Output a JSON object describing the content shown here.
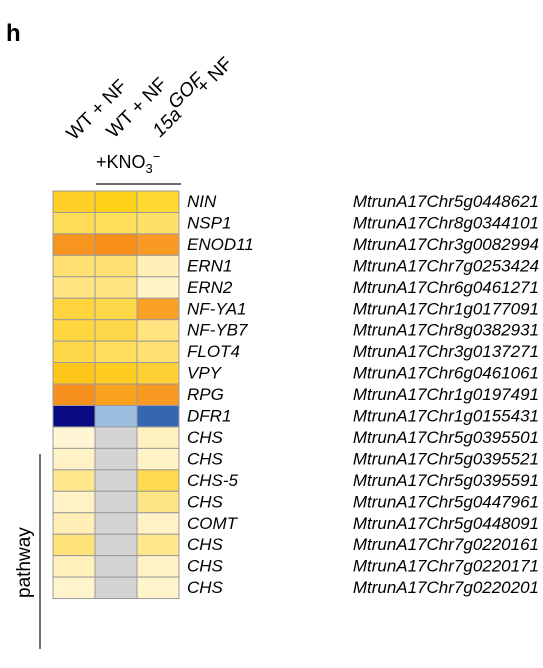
{
  "panel_letter": "h",
  "columns": [
    "WT + NF",
    "WT + NF",
    "15a",
    "GOF",
    "+ NF"
  ],
  "condition": {
    "prefix": "+KNO",
    "subscript": "3",
    "superscript": "−"
  },
  "group_label": "pathway",
  "colors": {
    "light_yellow": "#fff6d6",
    "yellow": "#ffd84a",
    "gold": "#ffc61a",
    "orange": "#f79a1e",
    "grey_na": "#d4d4d4",
    "navy": "#0a0a82",
    "light_blue": "#9bbde0",
    "mid_blue": "#3566b2"
  },
  "chart_data": {
    "type": "heatmap",
    "columns": [
      "WT + NF",
      "WT + NF",
      "15a GOF + NF"
    ],
    "rows": [
      {
        "gene": "NIN",
        "id": "MtrunA17Chr5g0448621",
        "colors": [
          "#ffcf26",
          "#ffd21a",
          "#ffd830"
        ]
      },
      {
        "gene": "NSP1",
        "id": "MtrunA17Chr8g0344101",
        "colors": [
          "#ffdc55",
          "#ffde5a",
          "#ffe066"
        ]
      },
      {
        "gene": "ENOD11",
        "id": "MtrunA17Chr3g0082994",
        "colors": [
          "#f8951e",
          "#f98e18",
          "#f89a24"
        ]
      },
      {
        "gene": "ERN1",
        "id": "MtrunA17Chr7g0253424",
        "colors": [
          "#ffe070",
          "#ffe070",
          "#fff0b8"
        ]
      },
      {
        "gene": "ERN2",
        "id": "MtrunA17Chr6g0461271",
        "colors": [
          "#ffe481",
          "#ffe481",
          "#fff4c8"
        ]
      },
      {
        "gene": "NF-YA1",
        "id": "MtrunA17Chr1g0177091",
        "colors": [
          "#ffd43c",
          "#ffd84a",
          "#f9a125"
        ]
      },
      {
        "gene": "NF-YB7",
        "id": "MtrunA17Chr8g0382931",
        "colors": [
          "#ffd640",
          "#ffd84a",
          "#ffe480"
        ]
      },
      {
        "gene": "FLOT4",
        "id": "MtrunA17Chr3g0137271",
        "colors": [
          "#ffd84a",
          "#ffde5e",
          "#ffe070"
        ]
      },
      {
        "gene": "VPY",
        "id": "MtrunA17Chr6g0461061",
        "colors": [
          "#ffc61a",
          "#ffcc22",
          "#ffd034"
        ]
      },
      {
        "gene": "RPG",
        "id": "MtrunA17Chr1g0197491",
        "colors": [
          "#f7901f",
          "#faa31e",
          "#f89a22"
        ]
      },
      {
        "gene": "DFR1",
        "id": "MtrunA17Chr1g0155431",
        "colors": [
          "#0a0a82",
          "#9bbde0",
          "#3566b2"
        ]
      },
      {
        "gene": "CHS",
        "id": "MtrunA17Chr5g0395501",
        "colors": [
          "#fff6d6",
          "#d4d4d4",
          "#fff0c0"
        ]
      },
      {
        "gene": "CHS",
        "id": "MtrunA17Chr5g0395521",
        "colors": [
          "#fff2c6",
          "#d4d4d4",
          "#fff2c6"
        ]
      },
      {
        "gene": "CHS-5",
        "id": "MtrunA17Chr5g0395591",
        "colors": [
          "#ffe88c",
          "#d4d4d4",
          "#ffda4e"
        ]
      },
      {
        "gene": "CHS",
        "id": "MtrunA17Chr5g0447961",
        "colors": [
          "#fff2c6",
          "#d4d4d4",
          "#ffe486"
        ]
      },
      {
        "gene": "COMT",
        "id": "MtrunA17Chr5g0448091",
        "colors": [
          "#ffefb6",
          "#d4d4d4",
          "#fff2c6"
        ]
      },
      {
        "gene": "CHS",
        "id": "MtrunA17Chr7g0220161",
        "colors": [
          "#ffe27a",
          "#d4d4d4",
          "#ffe88c"
        ]
      },
      {
        "gene": "CHS",
        "id": "MtrunA17Chr7g0220171",
        "colors": [
          "#fff0bc",
          "#d4d4d4",
          "#fff2c6"
        ]
      },
      {
        "gene": "CHS",
        "id": "MtrunA17Chr7g0220201",
        "colors": [
          "#fff4cc",
          "#d4d4d4",
          "#fff4cc"
        ]
      }
    ]
  }
}
